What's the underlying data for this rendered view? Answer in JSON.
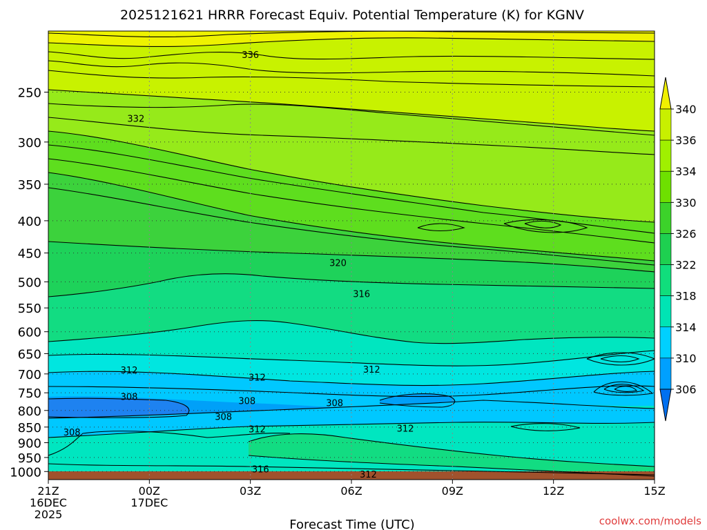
{
  "chart_data": {
    "type": "contour",
    "title": "2025121621 HRRR Forecast Equiv. Potential Temperature (K) for KGNV",
    "xlabel": "Forecast Time (UTC)",
    "ylabel": "",
    "credit": "coolwx.com/models",
    "x_ticks": [
      {
        "value": 0,
        "lines": [
          "21Z",
          "16DEC",
          "2025"
        ]
      },
      {
        "value": 3,
        "lines": [
          "00Z",
          "17DEC"
        ]
      },
      {
        "value": 6,
        "lines": [
          "03Z"
        ]
      },
      {
        "value": 9,
        "lines": [
          "06Z"
        ]
      },
      {
        "value": 12,
        "lines": [
          "09Z"
        ]
      },
      {
        "value": 15,
        "lines": [
          "12Z"
        ]
      },
      {
        "value": 18,
        "lines": [
          "15Z"
        ]
      }
    ],
    "xlim": [
      0,
      18
    ],
    "y_ticks": [
      250,
      300,
      350,
      400,
      450,
      500,
      550,
      600,
      650,
      700,
      750,
      800,
      850,
      900,
      950,
      1000
    ],
    "ylim": [
      1030,
      200
    ],
    "y_scale": "log",
    "colorbar": {
      "labels": [
        340,
        336,
        334,
        330,
        326,
        322,
        318,
        314,
        310,
        306
      ],
      "colors": [
        "#f0f000",
        "#c8f000",
        "#a0f000",
        "#6ee000",
        "#3cd22a",
        "#1ed050",
        "#10de7c",
        "#00e4b4",
        "#00d0ff",
        "#00a0ff",
        "#0070f0"
      ]
    },
    "field_colors": {
      "340": "#eef200",
      "336": "#c8f200",
      "332": "#96ea1a",
      "328": "#5ede1e",
      "324": "#3cd23c",
      "320": "#1ed25a",
      "316": "#12dc82",
      "312": "#00e6c0",
      "310": "#00e6e0",
      "308": "#00c8ff",
      "306": "#00a0f8",
      "304": "#1e82f0",
      "ground": "#a0522d"
    },
    "contour_labels": [
      {
        "text": "336",
        "x": 6.0,
        "y": 218
      },
      {
        "text": "332",
        "x": 2.6,
        "y": 275
      },
      {
        "text": "320",
        "x": 8.6,
        "y": 466
      },
      {
        "text": "316",
        "x": 9.3,
        "y": 522
      },
      {
        "text": "312",
        "x": 2.4,
        "y": 690
      },
      {
        "text": "312",
        "x": 6.2,
        "y": 708
      },
      {
        "text": "312",
        "x": 9.6,
        "y": 688
      },
      {
        "text": "308",
        "x": 2.4,
        "y": 760
      },
      {
        "text": "308",
        "x": 5.9,
        "y": 772
      },
      {
        "text": "308",
        "x": 8.5,
        "y": 778
      },
      {
        "text": "308",
        "x": 5.2,
        "y": 818
      },
      {
        "text": "312",
        "x": 6.2,
        "y": 856
      },
      {
        "text": "312",
        "x": 10.6,
        "y": 854
      },
      {
        "text": "308",
        "x": 0.7,
        "y": 866
      },
      {
        "text": "316",
        "x": 6.3,
        "y": 990
      },
      {
        "text": "312",
        "x": 9.5,
        "y": 1010
      }
    ]
  }
}
